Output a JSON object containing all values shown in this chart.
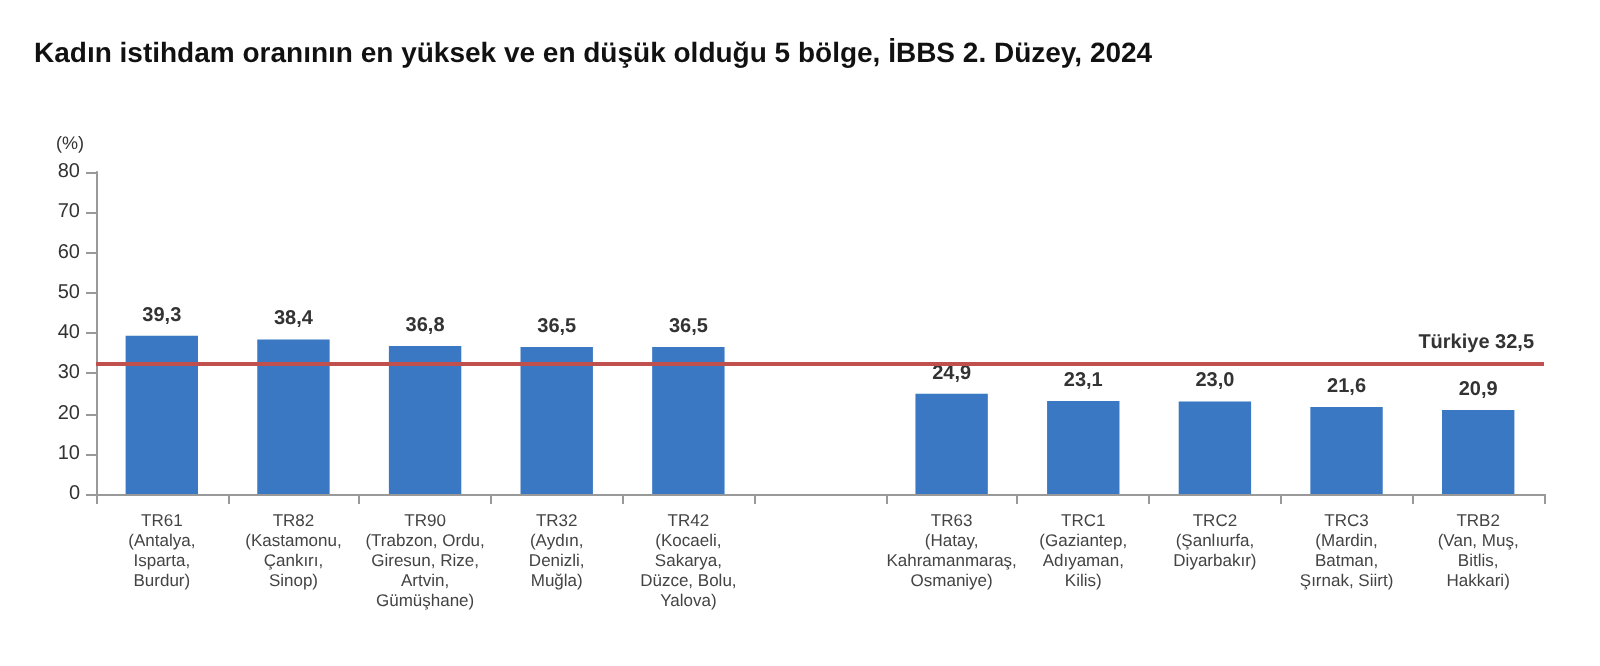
{
  "chart_data": {
    "type": "bar",
    "title": "Kadın istihdam oranının en yüksek ve en düşük olduğu 5 bölge, İBBS 2. Düzey, 2024",
    "ylabel": "(%)",
    "categories": [
      "TR61\n(Antalya,\nIsparta,\nBurdur)",
      "TR82\n(Kastamonu,\nÇankırı,\nSinop)",
      "TR90\n(Trabzon, Ordu,\nGiresun, Rize,\nArtvin,\nGümüşhane)",
      "TR32\n(Aydın,\nDenizli,\nMuğla)",
      "TR42\n(Kocaeli,\nSakarya,\nDüzce, Bolu,\nYalova)",
      null,
      "TR63\n(Hatay,\nKahramanmaraş,\nOsmaniye)",
      "TRC1\n(Gaziantep,\nAdıyaman,\nKilis)",
      "TRC2\n(Şanlıurfa,\nDiyarbakır)",
      "TRC3\n(Mardin,\nBatman,\nŞırnak, Siirt)",
      "TRB2\n(Van, Muş,\nBitlis,\nHakkari)"
    ],
    "values": [
      39.3,
      38.4,
      36.8,
      36.5,
      36.5,
      null,
      24.9,
      23.1,
      23.0,
      21.6,
      20.9
    ],
    "value_labels": [
      "39,3",
      "38,4",
      "36,8",
      "36,5",
      "36,5",
      null,
      "24,9",
      "23,1",
      "23,0",
      "21,6",
      "20,9"
    ],
    "color": "#3b78c3",
    "ylim": [
      0,
      80
    ],
    "yticks": [
      0,
      10,
      20,
      30,
      40,
      50,
      60,
      70,
      80
    ],
    "grid": false,
    "ref_lines": [
      {
        "axis": "y",
        "value": 32.5,
        "label": "Türkiye 32,5",
        "color": "#c0504d"
      }
    ]
  }
}
